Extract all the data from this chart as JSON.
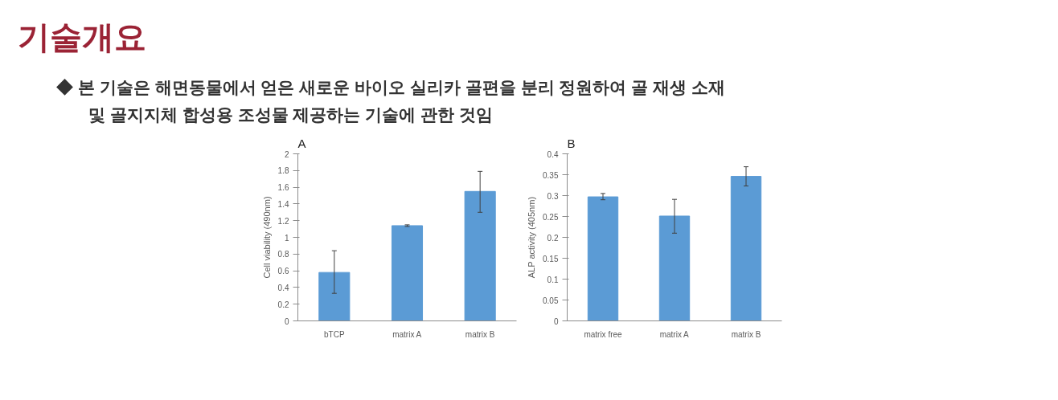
{
  "chart_data": [
    {
      "type": "bar",
      "title": "A",
      "ylabel": "Cell viability (490nm)",
      "annotations": [
        "기술개요",
        "◆  본 기술은 해면동물에서 얻은 새로운 바이오 실리카 골편을 분리 정원하여 골 재생 소재",
        "및 골지지체 합성용 조성물 제공하는 기술에 관한 것임"
      ],
      "categories": [
        "bTCP",
        "matrix A",
        "matrix B"
      ],
      "values": [
        0.58,
        1.14,
        1.55
      ],
      "color": "#5b9bd5",
      "errors": [
        [
          0.33,
          0.84
        ],
        [
          1.13,
          1.15
        ],
        [
          1.3,
          1.79
        ]
      ],
      "ylim": [
        0,
        2
      ],
      "yticks": [
        0,
        0.2,
        0.4,
        0.6,
        0.8,
        1,
        1.2,
        1.4,
        1.6,
        1.8,
        2
      ],
      "grid": false
    },
    {
      "type": "bar",
      "title": "B",
      "ylabel": "ALP activity (405nm)",
      "categories": [
        "matrix free",
        "matrix A",
        "matrix B"
      ],
      "values": [
        0.297,
        0.251,
        0.346
      ],
      "color": "#5b9bd5",
      "errors": [
        [
          0.29,
          0.305
        ],
        [
          0.21,
          0.291
        ],
        [
          0.323,
          0.369
        ]
      ],
      "ylim": [
        0,
        0.4
      ],
      "yticks": [
        0,
        0.05,
        0.1,
        0.15,
        0.2,
        0.25,
        0.3,
        0.35,
        0.4
      ],
      "grid": false
    }
  ]
}
